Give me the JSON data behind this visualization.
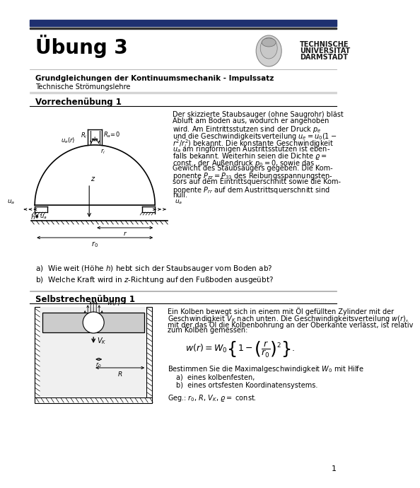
{
  "title": "Übung 3",
  "header_bar_color": "#1e3070",
  "tu_name1": "TECHNISCHE",
  "tu_name2": "UNIVERSITÄT",
  "tu_name3": "DARMSTADT",
  "subtitle_bold": "Grundgleichungen der Kontinuumsmechanik - Impulssatz",
  "subtitle_normal": "Technische Strömungslehre",
  "section1_title": "Vorrechenübung 1",
  "section2_title": "Selbstrechenübung 1",
  "question_a1": "a)  Wie weit (Höhe $h$) hebt sich der Staubsauger vom Boden ab?",
  "question_b1": "b)  Welche Kraft wird in $z$-Richtung auf den Fußboden ausgeübt?",
  "section1_lines": [
    "Der skizzierte Staubsauger (ohne Saugrohr) bläst",
    "Abluft am Boden aus, wodurch er angehoben",
    "wird. Am Eintrittsstutzen sind der Druck $p_e$",
    "und die Geschwindigkeitsverteilung $u_e = u_0(1 -$",
    "$r^2/r_i^2)$ bekannt. Die konstante Geschwindigkeit",
    "$u_a$ am ringförmigen Austrittsstutzen ist eben-",
    "falls bekannt. Weiterhin seien die Dichte $\\varrho =$",
    "const., der Außendruck $p_0 = 0$, sowie das",
    "Gewicht des Staubsaugers gegeben. Die Kom-",
    "ponente $P_{zz} = P_{33}$ des Reibungsspannungsten-",
    "sors auf dem Eintrittsquerschnitt sowie die Kom-",
    "ponente $P_{rr}$ auf dem Austrittsquerschnitt sind",
    "null."
  ],
  "section2_lines": [
    "Ein Kolben bewegt sich in einem mit Öl gefüllten Zylinder mit der",
    "Geschwindigkeit $V_K$ nach unten. Die Geschwindigkeitsverteilung $w(r)$,",
    "mit der das Öl die Kolbenbohrung an der Oberkante verlässt, ist relativ",
    "zum Kolben gemessen:"
  ],
  "formula": "$w(r) = W_0 \\left\\{1 - \\left(\\dfrac{r}{r_0}\\right)^2\\right\\}.$",
  "section2_sub": "Bestimmen Sie die Maximalgeschwindigkeit $W_0$ mit Hilfe",
  "question_a2": "a)  eines kolbenfesten,",
  "question_b2": "b)  eines ortsfesten Koordinatensystems.",
  "given": "Geg.: $r_0$, $R$, $V_K$, $\\varrho =$ const.",
  "page_number": "1",
  "bg_color": "#ffffff",
  "text_color": "#000000"
}
